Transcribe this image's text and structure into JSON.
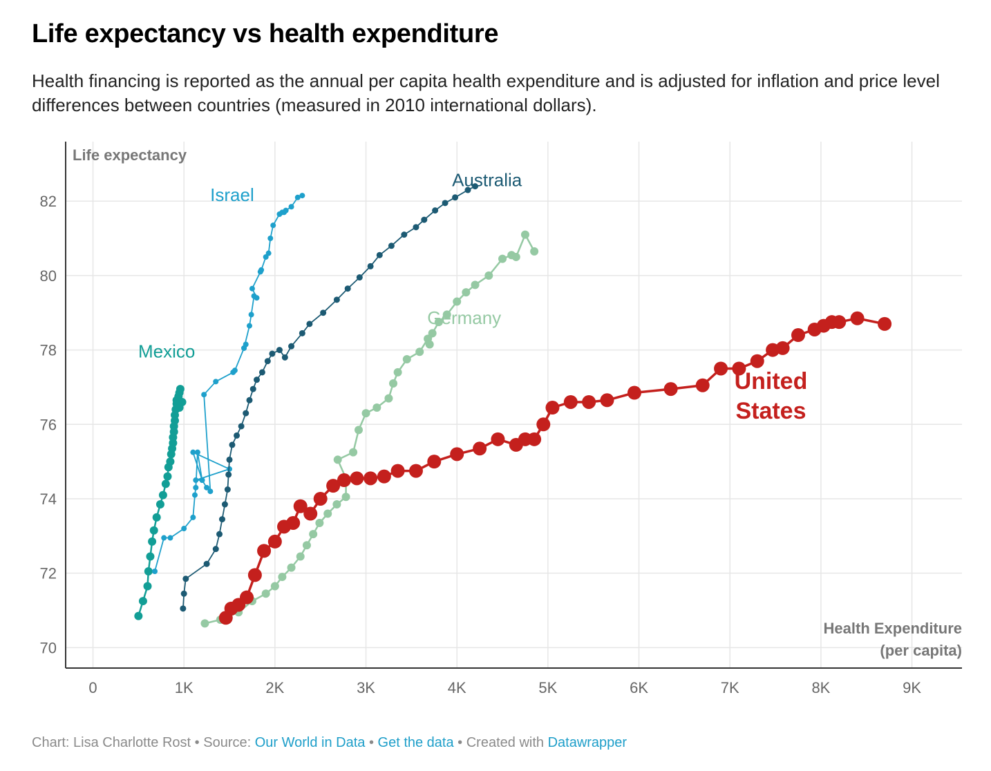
{
  "title": "Life expectancy vs health expenditure",
  "subtitle": "Health financing is reported as the annual per capita health expenditure and is adjusted for inflation and price level differences between countries (measured in 2010 international dollars).",
  "footer": {
    "chart_by": "Chart: Lisa Charlotte Rost",
    "sep1": " • ",
    "source_label": "Source: ",
    "source_link": "Our World in Data",
    "sep2": " • ",
    "data_link": "Get the data",
    "sep3": " • ",
    "created_label": "Created with ",
    "created_link": "Datawrapper"
  },
  "chart_data": {
    "type": "scatter",
    "connected": true,
    "ylabel": "Life expectancy",
    "xlabel_line1": "Health Expenditure",
    "xlabel_line2": "(per capita)",
    "xlim": [
      -300,
      9550
    ],
    "ylim": [
      69.45,
      83.6
    ],
    "x_ticks": [
      0,
      1000,
      2000,
      3000,
      4000,
      5000,
      6000,
      7000,
      8000,
      9000
    ],
    "x_tick_labels": [
      "0",
      "1K",
      "2K",
      "3K",
      "4K",
      "5K",
      "6K",
      "7K",
      "8K",
      "9K"
    ],
    "y_ticks": [
      70,
      72,
      74,
      76,
      78,
      80,
      82
    ],
    "y_tick_labels": [
      "70",
      "72",
      "74",
      "76",
      "78",
      "80",
      "82"
    ],
    "grid": true,
    "series": [
      {
        "name": "Mexico",
        "color": "#129e96",
        "label": "Mexico",
        "label_pos": [
          810,
          77.8
        ],
        "x": [
          500,
          550,
          600,
          610,
          630,
          650,
          670,
          700,
          740,
          770,
          800,
          820,
          830,
          850,
          860,
          870,
          880,
          880,
          890,
          890,
          900,
          900,
          910,
          920,
          920,
          940,
          950,
          960,
          950,
          980
        ],
        "y": [
          70.85,
          71.25,
          71.65,
          72.05,
          72.45,
          72.85,
          73.15,
          73.5,
          73.85,
          74.1,
          74.4,
          74.6,
          74.85,
          75.0,
          75.2,
          75.35,
          75.5,
          75.65,
          75.8,
          75.95,
          76.1,
          76.25,
          76.4,
          76.55,
          76.65,
          76.75,
          76.85,
          76.95,
          76.45,
          76.6
        ],
        "r": 6
      },
      {
        "name": "Israel",
        "color": "#1ea0cb",
        "label": "Israel",
        "label_pos": [
          1530,
          82.0
        ],
        "x": [
          680,
          780,
          850,
          1000,
          1100,
          1120,
          1130,
          1150,
          1200,
          1100,
          1500,
          1130,
          1200,
          1250,
          1290,
          1220,
          1350,
          1540,
          1560,
          1660,
          1680,
          1660,
          1720,
          1740,
          1770,
          1800,
          1750,
          1840,
          1850,
          1900,
          1930,
          1950,
          1980,
          2050,
          2080,
          2100,
          2120,
          2180,
          2250,
          2300
        ],
        "y": [
          72.05,
          72.95,
          72.95,
          73.2,
          73.5,
          74.1,
          74.3,
          75.25,
          74.5,
          75.25,
          74.8,
          74.5,
          74.5,
          74.3,
          74.2,
          76.8,
          77.15,
          77.4,
          77.45,
          78.05,
          78.15,
          78.05,
          78.65,
          78.95,
          79.45,
          79.4,
          79.65,
          80.1,
          80.15,
          80.5,
          80.6,
          81.0,
          81.35,
          81.65,
          81.7,
          81.7,
          81.75,
          81.85,
          82.1,
          82.15
        ],
        "r": 4
      },
      {
        "name": "Australia",
        "color": "#1c5a73",
        "label": "Australia",
        "label_pos": [
          4330,
          82.4
        ],
        "x": [
          990,
          1000,
          1020,
          1250,
          1350,
          1390,
          1420,
          1450,
          1480,
          1490,
          1500,
          1530,
          1580,
          1630,
          1680,
          1720,
          1760,
          1800,
          1860,
          1920,
          1970,
          2050,
          2110,
          2180,
          2300,
          2380,
          2530,
          2680,
          2800,
          2930,
          3050,
          3150,
          3280,
          3420,
          3550,
          3640,
          3760,
          3870,
          3980,
          4120,
          4200
        ],
        "y": [
          71.05,
          71.45,
          71.85,
          72.25,
          72.65,
          73.05,
          73.45,
          73.85,
          74.25,
          74.65,
          75.05,
          75.45,
          75.7,
          75.95,
          76.3,
          76.65,
          76.95,
          77.2,
          77.4,
          77.7,
          77.9,
          78.0,
          77.8,
          78.1,
          78.45,
          78.7,
          79.0,
          79.35,
          79.65,
          79.95,
          80.25,
          80.55,
          80.8,
          81.1,
          81.3,
          81.5,
          81.75,
          81.95,
          82.1,
          82.3,
          82.4
        ],
        "r": 4.5
      },
      {
        "name": "Germany",
        "color": "#95c9a3",
        "label": "Germany",
        "label_pos": [
          4080,
          78.7
        ],
        "x": [
          1230,
          1400,
          1600,
          1750,
          1900,
          2000,
          2080,
          2180,
          2280,
          2350,
          2420,
          2490,
          2580,
          2680,
          2780,
          2780,
          2690,
          2860,
          2920,
          3000,
          3120,
          3250,
          3300,
          3350,
          3450,
          3590,
          3680,
          3700,
          3730,
          3800,
          3890,
          4000,
          4100,
          4200,
          4350,
          4500,
          4600,
          4650,
          4750,
          4850
        ],
        "y": [
          70.65,
          70.75,
          70.95,
          71.25,
          71.45,
          71.65,
          71.9,
          72.15,
          72.45,
          72.75,
          73.05,
          73.35,
          73.6,
          73.85,
          74.05,
          74.55,
          75.05,
          75.25,
          75.85,
          76.3,
          76.45,
          76.7,
          77.1,
          77.4,
          77.75,
          77.95,
          78.3,
          78.15,
          78.45,
          78.75,
          78.95,
          79.3,
          79.55,
          79.75,
          80.0,
          80.45,
          80.55,
          80.5,
          81.1,
          80.65
        ],
        "r": 6
      },
      {
        "name": "United States",
        "color": "#c4201d",
        "label": "United",
        "label2": "States",
        "label_pos": [
          7450,
          76.95
        ],
        "x": [
          1460,
          1520,
          1600,
          1690,
          1780,
          1880,
          2000,
          2100,
          2200,
          2280,
          2390,
          2500,
          2640,
          2760,
          2900,
          3050,
          3200,
          3350,
          3550,
          3750,
          4000,
          4250,
          4450,
          4650,
          4750,
          4850,
          4950,
          5050,
          5250,
          5450,
          5650,
          5950,
          6350,
          6700,
          6900,
          7100,
          7300,
          7470,
          7580,
          7750,
          7930,
          8030,
          8120,
          8200,
          8400,
          8700
        ],
        "y": [
          70.8,
          71.05,
          71.15,
          71.35,
          71.95,
          72.6,
          72.85,
          73.25,
          73.35,
          73.8,
          73.6,
          74.0,
          74.35,
          74.5,
          74.55,
          74.55,
          74.6,
          74.75,
          74.75,
          75.0,
          75.2,
          75.35,
          75.6,
          75.45,
          75.6,
          75.6,
          76.0,
          76.45,
          76.6,
          76.6,
          76.65,
          76.85,
          76.95,
          77.05,
          77.5,
          77.5,
          77.7,
          78.0,
          78.05,
          78.4,
          78.55,
          78.65,
          78.75,
          78.75,
          78.85,
          78.7
        ],
        "r": 10
      }
    ]
  }
}
